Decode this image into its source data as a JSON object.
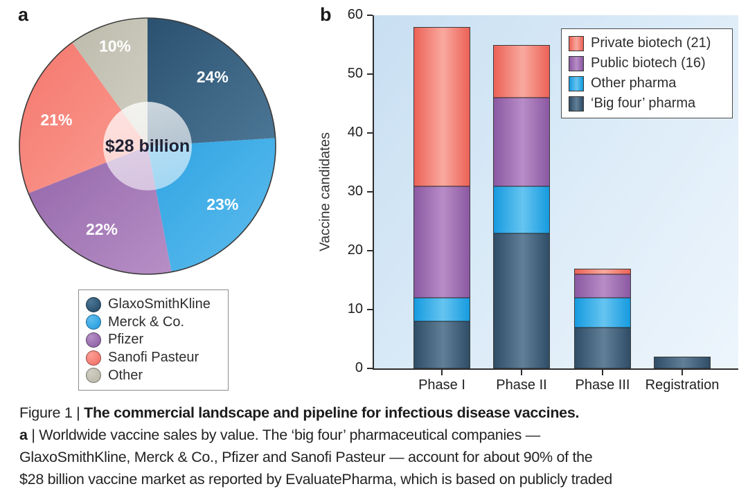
{
  "panel_a": {
    "label": "a"
  },
  "panel_b": {
    "label": "b"
  },
  "chart_data": [
    {
      "panel": "a",
      "type": "pie",
      "title": "Worldwide vaccine sales by value",
      "center_label": "$28 billion",
      "slices": [
        {
          "label": "GlaxoSmithKline",
          "pct": 24,
          "pct_label": "24%",
          "color": "#2b5170",
          "color_light": "#4d7796"
        },
        {
          "label": "Merck & Co.",
          "pct": 23,
          "pct_label": "23%",
          "color": "#2ea3e2",
          "color_light": "#5fbdee"
        },
        {
          "label": "Pfizer",
          "pct": 22,
          "pct_label": "22%",
          "color": "#9366a9",
          "color_light": "#b78fc6"
        },
        {
          "label": "Sanofi Pasteur",
          "pct": 21,
          "pct_label": "21%",
          "color": "#f4776d",
          "color_light": "#fb9e94"
        },
        {
          "label": "Other",
          "pct": 10,
          "pct_label": "10%",
          "color": "#bcbbac",
          "color_light": "#d0cfc2"
        }
      ]
    },
    {
      "panel": "b",
      "type": "bar",
      "stacked": true,
      "ylabel": "Vaccine candidates",
      "ylim": [
        0,
        60
      ],
      "yticks": [
        0,
        10,
        20,
        30,
        40,
        50,
        60
      ],
      "categories": [
        "Phase I",
        "Phase II",
        "Phase III",
        "Registration"
      ],
      "series": [
        {
          "name": "‘Big four’ pharma",
          "color": "#3e5d77",
          "color_edge": "#2e4c65",
          "color_mid": "#617f97",
          "values": [
            8,
            23,
            7,
            2
          ]
        },
        {
          "name": "Other pharma",
          "color": "#29a4e2",
          "color_edge": "#149adf",
          "color_mid": "#66c4f0",
          "values": [
            4,
            8,
            5,
            0
          ]
        },
        {
          "name": "Public biotech (16)",
          "color": "#9a6bad",
          "color_edge": "#8a57a1",
          "color_mid": "#b88dc7",
          "values": [
            19,
            15,
            4,
            0
          ]
        },
        {
          "name": "Private biotech (21)",
          "color": "#f4796e",
          "color_edge": "#ec6055",
          "color_mid": "#f9a99f",
          "values": [
            27,
            9,
            1,
            0
          ]
        }
      ],
      "totals": [
        58,
        55,
        17,
        2
      ],
      "legend_order_top_to_bottom": [
        "Private biotech (21)",
        "Public biotech (16)",
        "Other pharma",
        "‘Big four’ pharma"
      ],
      "legend_position": "top-right",
      "grid": false
    }
  ],
  "caption": {
    "line1_prefix": "Figure 1 | ",
    "line1_bold": "The commercial landscape and pipeline for infectious disease vaccines.",
    "line2_bold": "a",
    "line2_text": " | Worldwide vaccine sales by value. The ‘big four’ pharmaceutical companies —",
    "line3": "GlaxoSmithKline, Merck & Co., Pfizer and Sanofi Pasteur — account for about 90% of the",
    "line4": "$28 billion vaccine market as reported by EvaluatePharma, which is based on publicly traded"
  }
}
